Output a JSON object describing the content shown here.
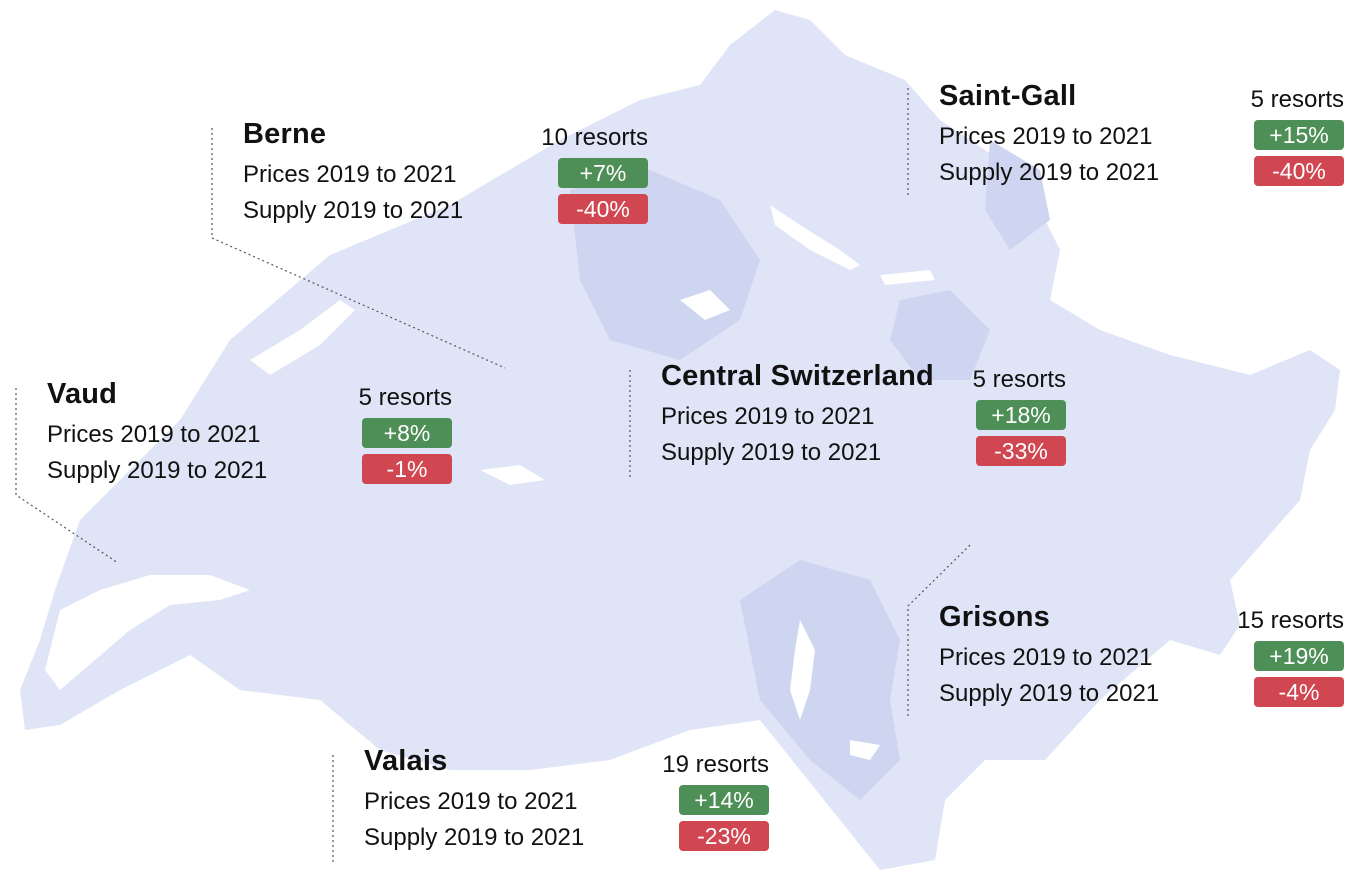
{
  "colors": {
    "map_fill": "#dfe4f6",
    "map_fill_dark": "#ced5f0",
    "lake": "#ffffff",
    "increase_badge": "#4e8f57",
    "decrease_badge": "#d04651",
    "leader_line": "#555555"
  },
  "regions": [
    {
      "name": "Berne",
      "resorts": "10 resorts",
      "prices_label": "Prices 2019 to 2021",
      "prices_change": "+7%",
      "supply_label": "Supply 2019 to 2021",
      "supply_change": "-40%"
    },
    {
      "name": "Saint-Gall",
      "resorts": "5 resorts",
      "prices_label": "Prices 2019 to 2021",
      "prices_change": "+15%",
      "supply_label": "Supply 2019 to 2021",
      "supply_change": "-40%"
    },
    {
      "name": "Vaud",
      "resorts": "5 resorts",
      "prices_label": "Prices 2019 to 2021",
      "prices_change": "+8%",
      "supply_label": "Supply 2019 to 2021",
      "supply_change": "-1%"
    },
    {
      "name": "Central Switzerland",
      "resorts": "5 resorts",
      "prices_label": "Prices 2019 to 2021",
      "prices_change": "+18%",
      "supply_label": "Supply 2019 to 2021",
      "supply_change": "-33%"
    },
    {
      "name": "Grisons",
      "resorts": "15 resorts",
      "prices_label": "Prices 2019 to 2021",
      "prices_change": "+19%",
      "supply_label": "Supply 2019 to 2021",
      "supply_change": "-4%"
    },
    {
      "name": "Valais",
      "resorts": "19 resorts",
      "prices_label": "Prices 2019 to 2021",
      "prices_change": "+14%",
      "supply_label": "Supply 2019 to 2021",
      "supply_change": "-23%"
    }
  ]
}
